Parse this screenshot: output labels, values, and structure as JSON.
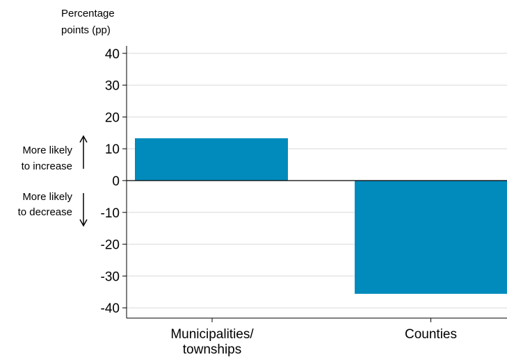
{
  "chart_data": {
    "type": "bar",
    "ylabel_lines": [
      "Percentage",
      "points (pp)"
    ],
    "categories": [
      [
        "Municipalities/",
        "townships"
      ],
      [
        "Counties"
      ]
    ],
    "values": [
      13.3,
      -35.6
    ],
    "ylim": [
      -42,
      42
    ],
    "yticks": [
      40,
      30,
      20,
      10,
      0,
      -10,
      -20,
      -30,
      -40
    ],
    "grid": true,
    "bar_color": "#008BBC",
    "annotations": {
      "increase": [
        "More likely",
        "to increase"
      ],
      "decrease": [
        "More likely",
        "to decrease"
      ]
    }
  }
}
